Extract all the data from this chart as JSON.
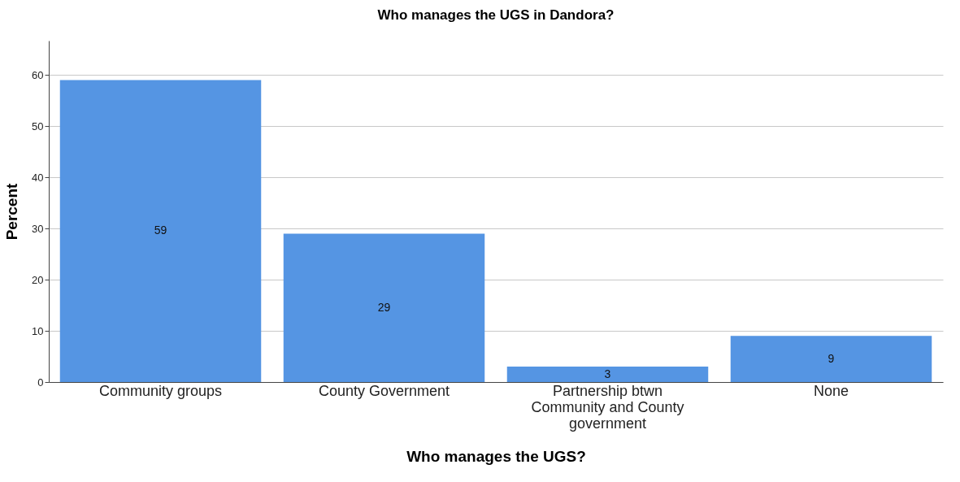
{
  "chart_data": {
    "type": "bar",
    "title": "Who manages the UGS in Dandora?",
    "xlabel": "Who manages the UGS?",
    "ylabel": "Percent",
    "categories": [
      "Community groups",
      "County Government",
      "Partnership btwn Community and County government",
      "None"
    ],
    "values": [
      59,
      29,
      3,
      9
    ],
    "color": "#5595e3",
    "ylim": [
      0,
      66.7
    ],
    "yticks": [
      0,
      10,
      20,
      30,
      40,
      50,
      60
    ],
    "grid": "y",
    "data_labels": true
  }
}
